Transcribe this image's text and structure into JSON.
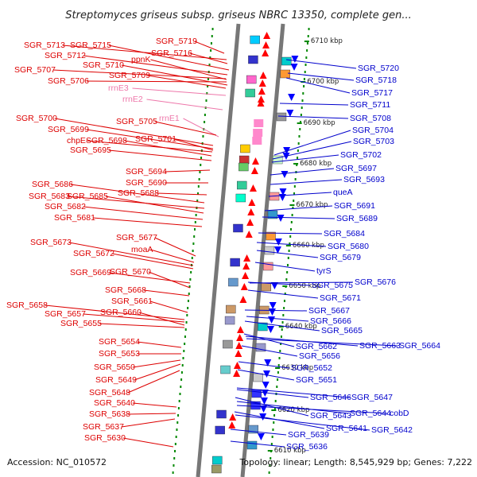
{
  "title": "Streptomyces griseus subsp. griseus NBRC 13350, complete gen...",
  "footer": {
    "accession": "Accession: NC_010572",
    "topology": "Topology: linear; Length: 8,545,929 bp; Genes: 7,222"
  },
  "colors": {
    "forward_label": "#dd0000",
    "reverse_label": "#0000cc",
    "rna_label": "#ee77aa",
    "forward_arrow": "#ff0000",
    "reverse_arrow": "#0000ff",
    "rna_feature": "#ff88cc",
    "axis": "#999999",
    "ruler": "#008800"
  },
  "ruler_kbp": [
    "6710 kbp",
    "6700 kbp",
    "6690 kbp",
    "6680 kbp",
    "6670 kbp",
    "6660 kbp",
    "6650 kbp",
    "6640 kbp",
    "6630 kbp",
    "6620 kbp",
    "6610 kbp"
  ],
  "left_labels": [
    "SGR_5713",
    "SGR_5715",
    "SGR_5712",
    "SGR_5707",
    "SGR_5706",
    "SGR_5719",
    "SGR_5716",
    "ppnK",
    "SGR_5710",
    "SGR_5709",
    "rrnE3",
    "rrnE2",
    "rrnE1",
    "SGR_5700",
    "SGR_5699",
    "chpE",
    "SGR_5698",
    "SGR_5695",
    "SGR_5705",
    "SGR_5701",
    "SGR_5694",
    "SGR_5690",
    "SGR_5688",
    "SGR_5686",
    "SGR_5683",
    "SGR_5685",
    "SGR_5682",
    "SGR_5681",
    "SGR_5677",
    "moaA",
    "SGR_5673",
    "SGR_5672",
    "SGR_5669",
    "SGR_5670",
    "SGR_5668",
    "SGR_5661",
    "SGR_5658",
    "SGR_5657",
    "SGR_5660",
    "SGR_5655",
    "SGR_5654",
    "SGR_5653",
    "SGR_5650",
    "SGR_5649",
    "SGR_5648",
    "SGR_5640",
    "SGR_5638",
    "SGR_5637",
    "SGR_5630"
  ],
  "right_labels": [
    "SGR_5720",
    "SGR_5718",
    "SGR_5717",
    "SGR_5711",
    "SGR_5708",
    "SGR_5704",
    "SGR_5703",
    "SGR_5702",
    "SGR_5697",
    "SGR_5693",
    "queA",
    "SGR_5691",
    "SGR_5689",
    "SGR_5684",
    "SGR_5680",
    "SGR_5679",
    "tyrS",
    "SGR_5675",
    "SGR_5676",
    "SGR_5671",
    "SGR_5667",
    "SGR_5666",
    "SGR_5665",
    "SGR_5662",
    "SGR_5663",
    "SGR_5664",
    "SGR_5656",
    "SGR_5652",
    "SGR_5651",
    "SGR_5646",
    "SGR_5647",
    "SGR_5643",
    "SGR_5644",
    "cobD",
    "SGR_5641",
    "SGR_5642",
    "SGR_5639",
    "SGR_5636"
  ]
}
